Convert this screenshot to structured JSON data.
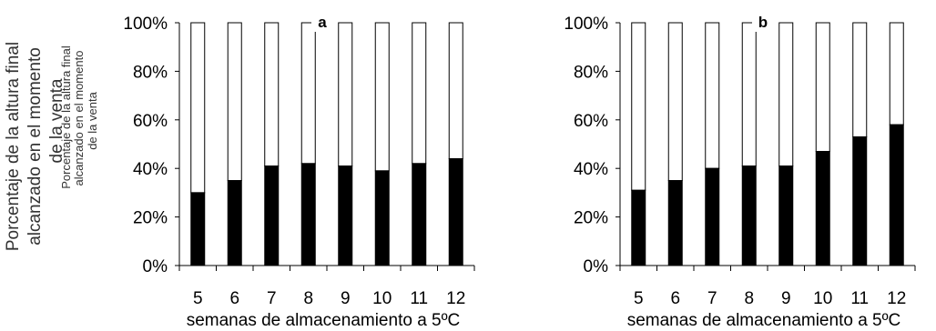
{
  "chart_data": [
    {
      "type": "bar",
      "stacked": true,
      "panel_label": "a",
      "categories": [
        "5",
        "6",
        "7",
        "8",
        "9",
        "10",
        "11",
        "12"
      ],
      "values": [
        30,
        35,
        41,
        42,
        41,
        39,
        42,
        44
      ],
      "remainder": [
        70,
        65,
        59,
        58,
        59,
        61,
        58,
        56
      ],
      "xlabel": "semanas de almacenamiento a 5ºC",
      "ylabel": "Porcentaje de la altura final alcanzado en el momento de la venta",
      "ylabel_overlap": [
        "Porcentaje de la altura final",
        "alcanzado en el momento",
        "de la venta"
      ],
      "ylim": [
        0,
        100
      ],
      "yticks": [
        "0%",
        "20%",
        "40%",
        "60%",
        "80%",
        "100%"
      ],
      "colors": {
        "filled": "#000000",
        "remainder": "#ffffff",
        "outline": "#000000"
      },
      "grid": false,
      "legend": "none"
    },
    {
      "type": "bar",
      "stacked": true,
      "panel_label": "b",
      "categories": [
        "5",
        "6",
        "7",
        "8",
        "9",
        "10",
        "11",
        "12"
      ],
      "values": [
        31,
        35,
        40,
        41,
        41,
        47,
        53,
        58
      ],
      "remainder": [
        69,
        65,
        60,
        59,
        59,
        53,
        47,
        42
      ],
      "xlabel": "semanas de almacenamiento a 5ºC",
      "ylim": [
        0,
        100
      ],
      "yticks": [
        "0%",
        "20%",
        "40%",
        "60%",
        "80%",
        "100%"
      ],
      "colors": {
        "filled": "#000000",
        "remainder": "#ffffff",
        "outline": "#000000"
      },
      "grid": false,
      "legend": "none"
    }
  ]
}
